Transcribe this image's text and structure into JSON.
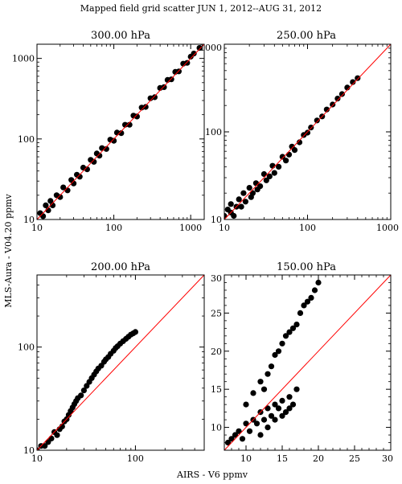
{
  "figure": {
    "title": "Mapped field grid scatter JUN  1, 2012--AUG 31, 2012",
    "xlabel": "AIRS - V6 ppmv",
    "ylabel": "MLS-Aura - V04.20 ppmv"
  },
  "colors": {
    "points": "#000000",
    "one_to_one_line": "#ff0000",
    "axes": "#000000"
  },
  "chart_data": [
    {
      "type": "scatter",
      "title": "300.00 hPa",
      "xscale": "log",
      "yscale": "log",
      "xlim": [
        10,
        1500
      ],
      "ylim": [
        10,
        1500
      ],
      "xticks": [
        10,
        100,
        1000
      ],
      "yticks": [
        10,
        100,
        1000
      ],
      "xticklabels": [
        "10",
        "100",
        "1000"
      ],
      "yticklabels": [
        "10",
        "100",
        "1000"
      ],
      "reference_line": "y = x",
      "points": [
        [
          11,
          12
        ],
        [
          12,
          11
        ],
        [
          13,
          15
        ],
        [
          14,
          13
        ],
        [
          15,
          17
        ],
        [
          16,
          15
        ],
        [
          18,
          20
        ],
        [
          20,
          19
        ],
        [
          22,
          25
        ],
        [
          25,
          23
        ],
        [
          28,
          31
        ],
        [
          30,
          28
        ],
        [
          33,
          36
        ],
        [
          36,
          34
        ],
        [
          40,
          44
        ],
        [
          45,
          42
        ],
        [
          50,
          55
        ],
        [
          55,
          52
        ],
        [
          60,
          66
        ],
        [
          65,
          62
        ],
        [
          70,
          77
        ],
        [
          80,
          75
        ],
        [
          90,
          98
        ],
        [
          100,
          95
        ],
        [
          110,
          120
        ],
        [
          125,
          118
        ],
        [
          140,
          150
        ],
        [
          160,
          150
        ],
        [
          180,
          195
        ],
        [
          200,
          190
        ],
        [
          230,
          245
        ],
        [
          260,
          250
        ],
        [
          300,
          320
        ],
        [
          340,
          330
        ],
        [
          400,
          430
        ],
        [
          450,
          440
        ],
        [
          500,
          540
        ],
        [
          560,
          550
        ],
        [
          630,
          680
        ],
        [
          700,
          690
        ],
        [
          800,
          860
        ],
        [
          900,
          880
        ],
        [
          1000,
          1050
        ],
        [
          1100,
          1150
        ],
        [
          1300,
          1350
        ]
      ]
    },
    {
      "type": "scatter",
      "title": "250.00 hPa",
      "xscale": "log",
      "yscale": "log",
      "xlim": [
        10,
        1000
      ],
      "ylim": [
        10,
        1000
      ],
      "xticks": [
        10,
        100,
        1000
      ],
      "yticks": [
        10,
        100,
        1000
      ],
      "xticklabels": [
        "10",
        "100",
        "1000"
      ],
      "yticklabels": [
        "10",
        "100",
        "1000"
      ],
      "reference_line": "y = x",
      "points": [
        [
          10,
          11
        ],
        [
          11,
          13
        ],
        [
          12,
          12
        ],
        [
          12,
          15
        ],
        [
          13,
          11
        ],
        [
          14,
          14
        ],
        [
          15,
          17
        ],
        [
          16,
          14
        ],
        [
          17,
          20
        ],
        [
          18,
          16
        ],
        [
          20,
          23
        ],
        [
          21,
          18
        ],
        [
          22,
          20
        ],
        [
          24,
          26
        ],
        [
          25,
          22
        ],
        [
          27,
          24
        ],
        [
          30,
          33
        ],
        [
          32,
          28
        ],
        [
          35,
          31
        ],
        [
          38,
          41
        ],
        [
          40,
          34
        ],
        [
          45,
          40
        ],
        [
          50,
          52
        ],
        [
          55,
          47
        ],
        [
          60,
          55
        ],
        [
          65,
          68
        ],
        [
          70,
          62
        ],
        [
          80,
          76
        ],
        [
          90,
          92
        ],
        [
          100,
          98
        ],
        [
          110,
          112
        ],
        [
          130,
          135
        ],
        [
          150,
          150
        ],
        [
          170,
          180
        ],
        [
          200,
          205
        ],
        [
          230,
          240
        ],
        [
          260,
          270
        ],
        [
          300,
          320
        ],
        [
          350,
          370
        ],
        [
          400,
          410
        ]
      ]
    },
    {
      "type": "scatter",
      "title": "200.00 hPa",
      "xscale": "log",
      "yscale": "log",
      "xlim": [
        10,
        500
      ],
      "ylim": [
        10,
        500
      ],
      "xticks": [
        10,
        100
      ],
      "yticks": [
        10,
        100
      ],
      "xticklabels": [
        "10",
        "100"
      ],
      "yticklabels": [
        "10",
        "100"
      ],
      "reference_line": "y = x",
      "points": [
        [
          10,
          10
        ],
        [
          11,
          11
        ],
        [
          12,
          11
        ],
        [
          13,
          12
        ],
        [
          14,
          13
        ],
        [
          15,
          15
        ],
        [
          16,
          14
        ],
        [
          17,
          16
        ],
        [
          18,
          17
        ],
        [
          19,
          19
        ],
        [
          20,
          20
        ],
        [
          21,
          22
        ],
        [
          22,
          24
        ],
        [
          23,
          26
        ],
        [
          24,
          28
        ],
        [
          25,
          30
        ],
        [
          26,
          32
        ],
        [
          28,
          34
        ],
        [
          30,
          38
        ],
        [
          32,
          42
        ],
        [
          34,
          46
        ],
        [
          36,
          50
        ],
        [
          38,
          54
        ],
        [
          40,
          58
        ],
        [
          42,
          62
        ],
        [
          45,
          66
        ],
        [
          48,
          72
        ],
        [
          50,
          76
        ],
        [
          53,
          80
        ],
        [
          56,
          86
        ],
        [
          60,
          92
        ],
        [
          63,
          98
        ],
        [
          66,
          102
        ],
        [
          70,
          108
        ],
        [
          75,
          114
        ],
        [
          80,
          120
        ],
        [
          85,
          126
        ],
        [
          90,
          132
        ],
        [
          95,
          136
        ],
        [
          100,
          140
        ]
      ]
    },
    {
      "type": "scatter",
      "title": "150.00 hPa",
      "xscale": "linear",
      "yscale": "linear",
      "xlim": [
        7,
        30
      ],
      "ylim": [
        7,
        30
      ],
      "xticks": [
        10,
        15,
        20,
        25,
        30
      ],
      "yticks": [
        10,
        15,
        20,
        25,
        30
      ],
      "xticklabels": [
        "10",
        "15",
        "20",
        "25",
        "30"
      ],
      "yticklabels": [
        "10",
        "15",
        "20",
        "25",
        "30"
      ],
      "reference_line": "y = x",
      "points": [
        [
          7.5,
          8
        ],
        [
          8,
          8.5
        ],
        [
          8.5,
          9
        ],
        [
          9,
          9.5
        ],
        [
          9.5,
          8.5
        ],
        [
          10,
          10.5
        ],
        [
          10.5,
          9.5
        ],
        [
          11,
          11
        ],
        [
          11.5,
          10.5
        ],
        [
          12,
          12
        ],
        [
          12.5,
          11
        ],
        [
          13,
          12.5
        ],
        [
          13.5,
          11.5
        ],
        [
          14,
          13
        ],
        [
          14.5,
          12.5
        ],
        [
          15,
          13.5
        ],
        [
          15.5,
          12
        ],
        [
          16,
          14
        ],
        [
          16.5,
          13
        ],
        [
          17,
          15
        ],
        [
          10,
          13
        ],
        [
          11,
          14.5
        ],
        [
          12,
          16
        ],
        [
          12.5,
          15
        ],
        [
          13,
          17
        ],
        [
          13.5,
          18
        ],
        [
          14,
          19.5
        ],
        [
          14.5,
          20
        ],
        [
          15,
          21
        ],
        [
          15.5,
          22
        ],
        [
          16,
          22.5
        ],
        [
          16.5,
          23
        ],
        [
          17,
          23.5
        ],
        [
          17.5,
          25
        ],
        [
          18,
          26
        ],
        [
          18.5,
          26.5
        ],
        [
          19,
          27
        ],
        [
          19.5,
          28
        ],
        [
          20,
          29
        ],
        [
          12,
          9
        ],
        [
          13,
          10
        ],
        [
          14,
          11
        ],
        [
          15,
          11.5
        ],
        [
          16,
          12.5
        ]
      ]
    }
  ]
}
